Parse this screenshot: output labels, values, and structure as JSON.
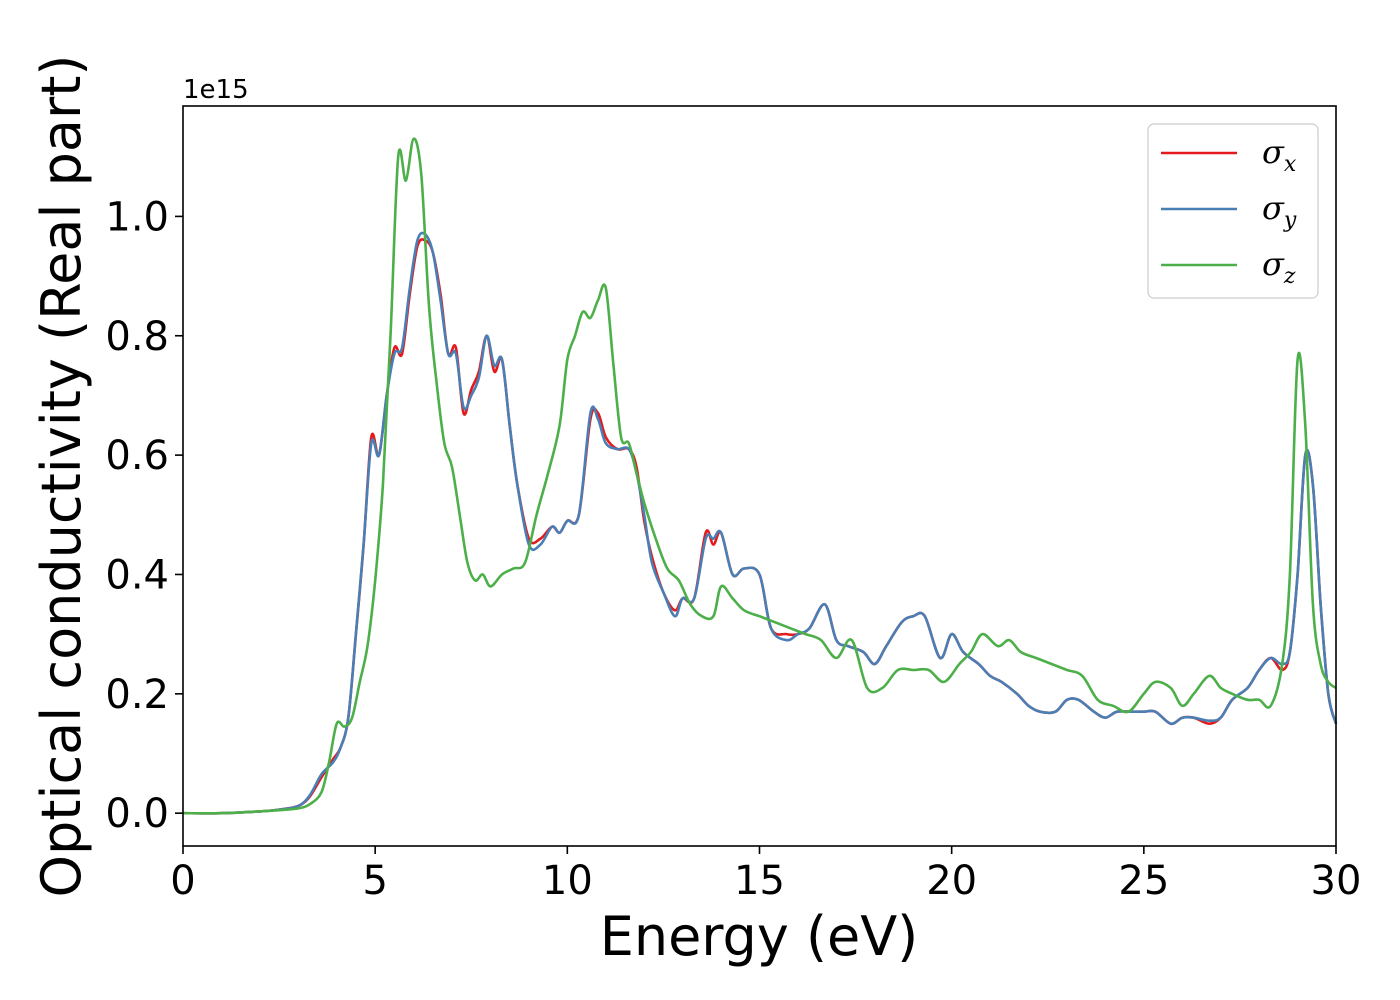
{
  "chart_data": {
    "type": "line",
    "title": "",
    "xlabel": "Energy (eV)",
    "ylabel": "Optical conductivity (Real part)",
    "y_offset_label": "1e15",
    "xlim": [
      0,
      30
    ],
    "ylim": [
      -0.055,
      1.185
    ],
    "xticks": [
      0,
      5,
      10,
      15,
      20,
      25,
      30
    ],
    "xtick_labels": [
      "0",
      "5",
      "10",
      "15",
      "20",
      "25",
      "30"
    ],
    "yticks": [
      0.0,
      0.2,
      0.4,
      0.6,
      0.8,
      1.0
    ],
    "ytick_labels": [
      "0.0",
      "0.2",
      "0.4",
      "0.6",
      "0.8",
      "1.0"
    ],
    "grid": false,
    "legend_position": "top-right",
    "series": [
      {
        "name": "σx",
        "symbol": "σ",
        "subscript": "x",
        "color": "#e41a1c",
        "x": [
          0,
          1,
          2,
          2.5,
          3,
          3.3,
          3.6,
          3.9,
          4.1,
          4.3,
          4.5,
          4.7,
          4.9,
          5.1,
          5.3,
          5.5,
          5.7,
          5.9,
          6.1,
          6.3,
          6.5,
          6.7,
          6.9,
          7.1,
          7.3,
          7.5,
          7.7,
          7.9,
          8.1,
          8.3,
          8.5,
          8.7,
          9.0,
          9.3,
          9.6,
          9.8,
          10.0,
          10.3,
          10.6,
          10.8,
          11.0,
          11.3,
          11.6,
          11.8,
          12.0,
          12.2,
          12.5,
          12.8,
          13.0,
          13.3,
          13.6,
          13.8,
          14.0,
          14.3,
          14.6,
          15.0,
          15.3,
          15.7,
          16.0,
          16.3,
          16.7,
          17.0,
          17.3,
          17.7,
          18.0,
          18.3,
          18.7,
          19.0,
          19.3,
          19.7,
          20.0,
          20.3,
          20.7,
          21.0,
          21.3,
          21.7,
          22.0,
          22.3,
          22.7,
          23.0,
          23.3,
          23.7,
          24.0,
          24.3,
          24.7,
          25.0,
          25.3,
          25.7,
          26.0,
          26.3,
          26.7,
          27.0,
          27.3,
          27.7,
          28.0,
          28.3,
          28.6,
          28.8,
          29.0,
          29.2,
          29.4,
          29.6,
          29.8,
          30.0
        ],
        "y": [
          0.0,
          0.0,
          0.003,
          0.006,
          0.012,
          0.028,
          0.06,
          0.09,
          0.11,
          0.16,
          0.3,
          0.45,
          0.63,
          0.6,
          0.7,
          0.78,
          0.77,
          0.87,
          0.95,
          0.96,
          0.94,
          0.87,
          0.77,
          0.78,
          0.67,
          0.71,
          0.74,
          0.8,
          0.74,
          0.76,
          0.65,
          0.55,
          0.46,
          0.46,
          0.48,
          0.47,
          0.49,
          0.5,
          0.66,
          0.67,
          0.63,
          0.61,
          0.61,
          0.58,
          0.49,
          0.43,
          0.37,
          0.34,
          0.36,
          0.36,
          0.47,
          0.45,
          0.47,
          0.4,
          0.41,
          0.4,
          0.31,
          0.3,
          0.3,
          0.31,
          0.35,
          0.29,
          0.28,
          0.27,
          0.25,
          0.28,
          0.32,
          0.33,
          0.33,
          0.26,
          0.3,
          0.27,
          0.25,
          0.23,
          0.22,
          0.2,
          0.18,
          0.17,
          0.17,
          0.19,
          0.19,
          0.17,
          0.16,
          0.17,
          0.17,
          0.17,
          0.17,
          0.15,
          0.16,
          0.16,
          0.15,
          0.16,
          0.19,
          0.21,
          0.24,
          0.26,
          0.24,
          0.27,
          0.4,
          0.6,
          0.55,
          0.35,
          0.2,
          0.15
        ]
      },
      {
        "name": "σy",
        "symbol": "σ",
        "subscript": "y",
        "color": "#4a7fb5",
        "x": [
          0,
          1,
          2,
          2.5,
          3,
          3.3,
          3.6,
          3.9,
          4.1,
          4.3,
          4.5,
          4.7,
          4.9,
          5.1,
          5.3,
          5.5,
          5.7,
          5.9,
          6.1,
          6.3,
          6.5,
          6.7,
          6.9,
          7.1,
          7.3,
          7.5,
          7.7,
          7.9,
          8.1,
          8.3,
          8.5,
          8.7,
          9.0,
          9.3,
          9.6,
          9.8,
          10.0,
          10.3,
          10.6,
          10.8,
          11.0,
          11.3,
          11.6,
          11.8,
          12.0,
          12.2,
          12.5,
          12.8,
          13.0,
          13.3,
          13.6,
          13.8,
          14.0,
          14.3,
          14.6,
          15.0,
          15.3,
          15.7,
          16.0,
          16.3,
          16.7,
          17.0,
          17.3,
          17.7,
          18.0,
          18.3,
          18.7,
          19.0,
          19.3,
          19.7,
          20.0,
          20.3,
          20.7,
          21.0,
          21.3,
          21.7,
          22.0,
          22.3,
          22.7,
          23.0,
          23.3,
          23.7,
          24.0,
          24.3,
          24.7,
          25.0,
          25.3,
          25.7,
          26.0,
          26.3,
          26.7,
          27.0,
          27.3,
          27.7,
          28.0,
          28.3,
          28.6,
          28.8,
          29.0,
          29.2,
          29.4,
          29.6,
          29.8,
          30.0
        ],
        "y": [
          0.0,
          0.0,
          0.003,
          0.006,
          0.012,
          0.03,
          0.065,
          0.085,
          0.11,
          0.16,
          0.3,
          0.45,
          0.62,
          0.6,
          0.7,
          0.77,
          0.78,
          0.88,
          0.96,
          0.97,
          0.94,
          0.86,
          0.77,
          0.77,
          0.68,
          0.7,
          0.73,
          0.8,
          0.75,
          0.76,
          0.65,
          0.55,
          0.45,
          0.45,
          0.48,
          0.47,
          0.49,
          0.5,
          0.67,
          0.66,
          0.62,
          0.61,
          0.61,
          0.57,
          0.5,
          0.42,
          0.37,
          0.33,
          0.36,
          0.36,
          0.46,
          0.46,
          0.47,
          0.4,
          0.41,
          0.4,
          0.31,
          0.29,
          0.3,
          0.31,
          0.35,
          0.29,
          0.28,
          0.27,
          0.25,
          0.28,
          0.32,
          0.33,
          0.33,
          0.26,
          0.3,
          0.27,
          0.25,
          0.23,
          0.22,
          0.2,
          0.18,
          0.17,
          0.17,
          0.19,
          0.19,
          0.17,
          0.16,
          0.17,
          0.17,
          0.17,
          0.17,
          0.15,
          0.16,
          0.16,
          0.155,
          0.16,
          0.19,
          0.21,
          0.24,
          0.26,
          0.25,
          0.27,
          0.4,
          0.6,
          0.55,
          0.35,
          0.2,
          0.15
        ]
      },
      {
        "name": "σz",
        "symbol": "σ",
        "subscript": "z",
        "color": "#4daf4a",
        "x": [
          0,
          1,
          2,
          2.5,
          3,
          3.3,
          3.6,
          3.8,
          4.0,
          4.2,
          4.4,
          4.6,
          4.8,
          5.0,
          5.2,
          5.4,
          5.6,
          5.8,
          6.0,
          6.2,
          6.4,
          6.6,
          6.8,
          7.0,
          7.2,
          7.4,
          7.6,
          7.8,
          8.0,
          8.3,
          8.6,
          8.9,
          9.2,
          9.5,
          9.8,
          10.0,
          10.2,
          10.4,
          10.6,
          10.8,
          11.0,
          11.2,
          11.4,
          11.6,
          11.8,
          12.0,
          12.3,
          12.6,
          12.9,
          13.2,
          13.5,
          13.8,
          14.0,
          14.3,
          14.6,
          15.0,
          15.4,
          15.8,
          16.2,
          16.6,
          17.0,
          17.4,
          17.8,
          18.2,
          18.6,
          19.0,
          19.4,
          19.8,
          20.2,
          20.5,
          20.8,
          21.2,
          21.5,
          21.8,
          22.2,
          22.6,
          23.0,
          23.4,
          23.8,
          24.2,
          24.6,
          25.0,
          25.3,
          25.7,
          26.0,
          26.3,
          26.7,
          27.0,
          27.3,
          27.7,
          28.0,
          28.3,
          28.6,
          28.8,
          29.0,
          29.2,
          29.4,
          29.6,
          29.8,
          30.0
        ],
        "y": [
          0.0,
          0.0,
          0.003,
          0.005,
          0.008,
          0.015,
          0.035,
          0.085,
          0.15,
          0.145,
          0.16,
          0.22,
          0.28,
          0.39,
          0.55,
          0.8,
          1.1,
          1.06,
          1.13,
          1.07,
          0.85,
          0.72,
          0.62,
          0.58,
          0.5,
          0.42,
          0.39,
          0.4,
          0.38,
          0.4,
          0.41,
          0.42,
          0.5,
          0.57,
          0.65,
          0.76,
          0.8,
          0.84,
          0.83,
          0.86,
          0.88,
          0.75,
          0.63,
          0.62,
          0.57,
          0.52,
          0.46,
          0.41,
          0.39,
          0.35,
          0.33,
          0.33,
          0.38,
          0.36,
          0.34,
          0.33,
          0.32,
          0.31,
          0.3,
          0.29,
          0.26,
          0.29,
          0.21,
          0.21,
          0.24,
          0.24,
          0.24,
          0.22,
          0.25,
          0.27,
          0.3,
          0.28,
          0.29,
          0.27,
          0.26,
          0.25,
          0.24,
          0.23,
          0.19,
          0.18,
          0.17,
          0.2,
          0.22,
          0.21,
          0.18,
          0.2,
          0.23,
          0.21,
          0.2,
          0.19,
          0.19,
          0.18,
          0.25,
          0.4,
          0.76,
          0.65,
          0.35,
          0.25,
          0.22,
          0.21
        ]
      }
    ]
  }
}
